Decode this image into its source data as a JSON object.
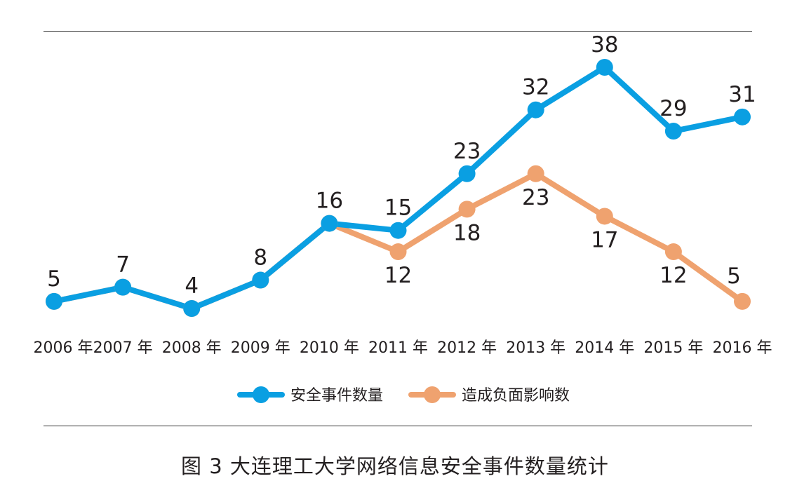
{
  "chart_data": {
    "type": "line",
    "categories": [
      "2006 年",
      "2007 年",
      "2008 年",
      "2009 年",
      "2010 年",
      "2011 年",
      "2012 年",
      "2013 年",
      "2014 年",
      "2015 年",
      "2016 年"
    ],
    "series": [
      {
        "name": "安全事件数量",
        "color": "#0a9fe2",
        "values": [
          5,
          7,
          4,
          8,
          16,
          15,
          23,
          32,
          38,
          29,
          31
        ]
      },
      {
        "name": "造成负面影响数",
        "color": "#efa26f",
        "values": [
          5,
          7,
          4,
          8,
          16,
          12,
          18,
          23,
          17,
          12,
          5
        ]
      }
    ],
    "visible_labels": {
      "安全事件数量": [
        "5",
        "7",
        "4",
        "8",
        "16",
        "15",
        "23",
        "32",
        "38",
        "29",
        "31"
      ],
      "造成负面影响数": [
        "",
        "",
        "",
        "",
        "",
        "12",
        "18",
        "23",
        "17",
        "12",
        "5"
      ]
    },
    "ylim": [
      4,
      38
    ],
    "grid": false,
    "legend_position": "bottom-center"
  },
  "caption": "图 3  大连理工大学网络信息安全事件数量统计"
}
